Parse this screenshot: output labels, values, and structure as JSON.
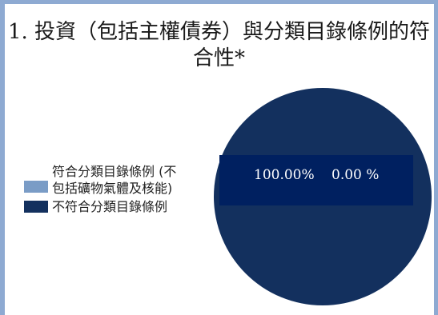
{
  "title_lines": [
    "1. 投資（包括主權債券）與分類目錄條例的符",
    "合性*"
  ],
  "colors": {
    "aligned": "#7a9cc6",
    "not_aligned": "#13305e",
    "label_band": "#002060",
    "frame": "#8eaad2"
  },
  "chart_data": {
    "type": "pie",
    "title": "1. 投資（包括主權債券）與分類目錄條例的符合性*",
    "series": [
      {
        "name": "符合分類目錄條例 (不包括礦物氣體及核能)",
        "value": 0.0,
        "label": "0.00 %"
      },
      {
        "name": "不符合分類目錄條例",
        "value": 100.0,
        "label": "100.00%"
      }
    ],
    "legend_position": "left"
  }
}
